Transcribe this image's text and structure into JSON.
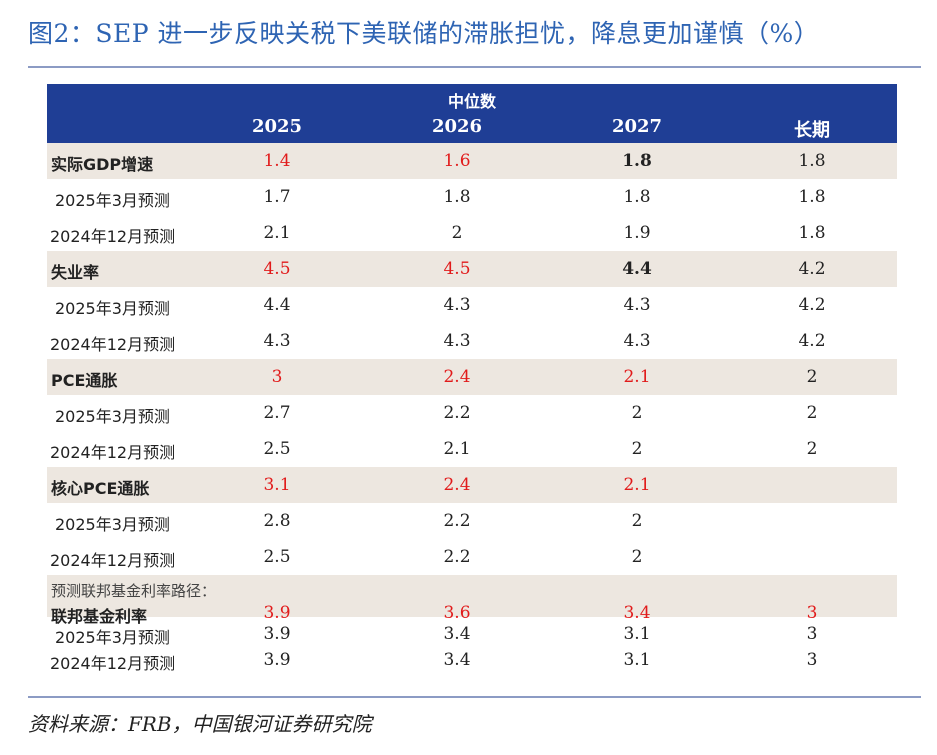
{
  "title": "图2：SEP 进一步反映关税下美联储的滞胀担忧，降息更加谨慎（%）",
  "header": {
    "group_label": "中位数",
    "columns": [
      "",
      "2025",
      "2026",
      "2027",
      "长期"
    ]
  },
  "rows": {
    "gdp": {
      "label": "实际GDP增速",
      "v": [
        "1.4",
        "1.6",
        "1.8",
        "1.8"
      ]
    },
    "gdp_mar": {
      "label": "2025年3月预测",
      "v": [
        "1.7",
        "1.8",
        "1.8",
        "1.8"
      ]
    },
    "gdp_dec": {
      "label": "2024年12月预测",
      "v": [
        "2.1",
        "2",
        "1.9",
        "1.8"
      ]
    },
    "unemp": {
      "label": "失业率",
      "v": [
        "4.5",
        "4.5",
        "4.4",
        "4.2"
      ]
    },
    "unemp_mar": {
      "label": "2025年3月预测",
      "v": [
        "4.4",
        "4.3",
        "4.3",
        "4.2"
      ]
    },
    "unemp_dec": {
      "label": "2024年12月预测",
      "v": [
        "4.3",
        "4.3",
        "4.3",
        "4.2"
      ]
    },
    "pce": {
      "label": "PCE通胀",
      "v": [
        "3",
        "2.4",
        "2.1",
        "2"
      ]
    },
    "pce_mar": {
      "label": "2025年3月预测",
      "v": [
        "2.7",
        "2.2",
        "2",
        "2"
      ]
    },
    "pce_dec": {
      "label": "2024年12月预测",
      "v": [
        "2.5",
        "2.1",
        "2",
        "2"
      ]
    },
    "core": {
      "label": "核心PCE通胀",
      "v": [
        "3.1",
        "2.4",
        "2.1",
        ""
      ]
    },
    "core_mar": {
      "label": "2025年3月预测",
      "v": [
        "2.8",
        "2.2",
        "2",
        ""
      ]
    },
    "core_dec": {
      "label": "2024年12月预测",
      "v": [
        "2.5",
        "2.2",
        "2",
        ""
      ]
    },
    "fed_note": "预测联邦基金利率路径：",
    "fed": {
      "label": "联邦基金利率",
      "v": [
        "3.9",
        "3.6",
        "3.4",
        "3"
      ]
    },
    "fed_mar": {
      "label": "2025年3月预测",
      "v": [
        "3.9",
        "3.4",
        "3.1",
        "3"
      ]
    },
    "fed_dec": {
      "label": "2024年12月预测",
      "v": [
        "3.9",
        "3.4",
        "3.1",
        "3"
      ]
    }
  },
  "source": "资料来源：FRB，中国银河证券研究院",
  "colors": {
    "header_bg": "#1f3e95",
    "highlight_row": "#ede7e0",
    "red": "#e11b1b",
    "title": "#2e64b3"
  }
}
